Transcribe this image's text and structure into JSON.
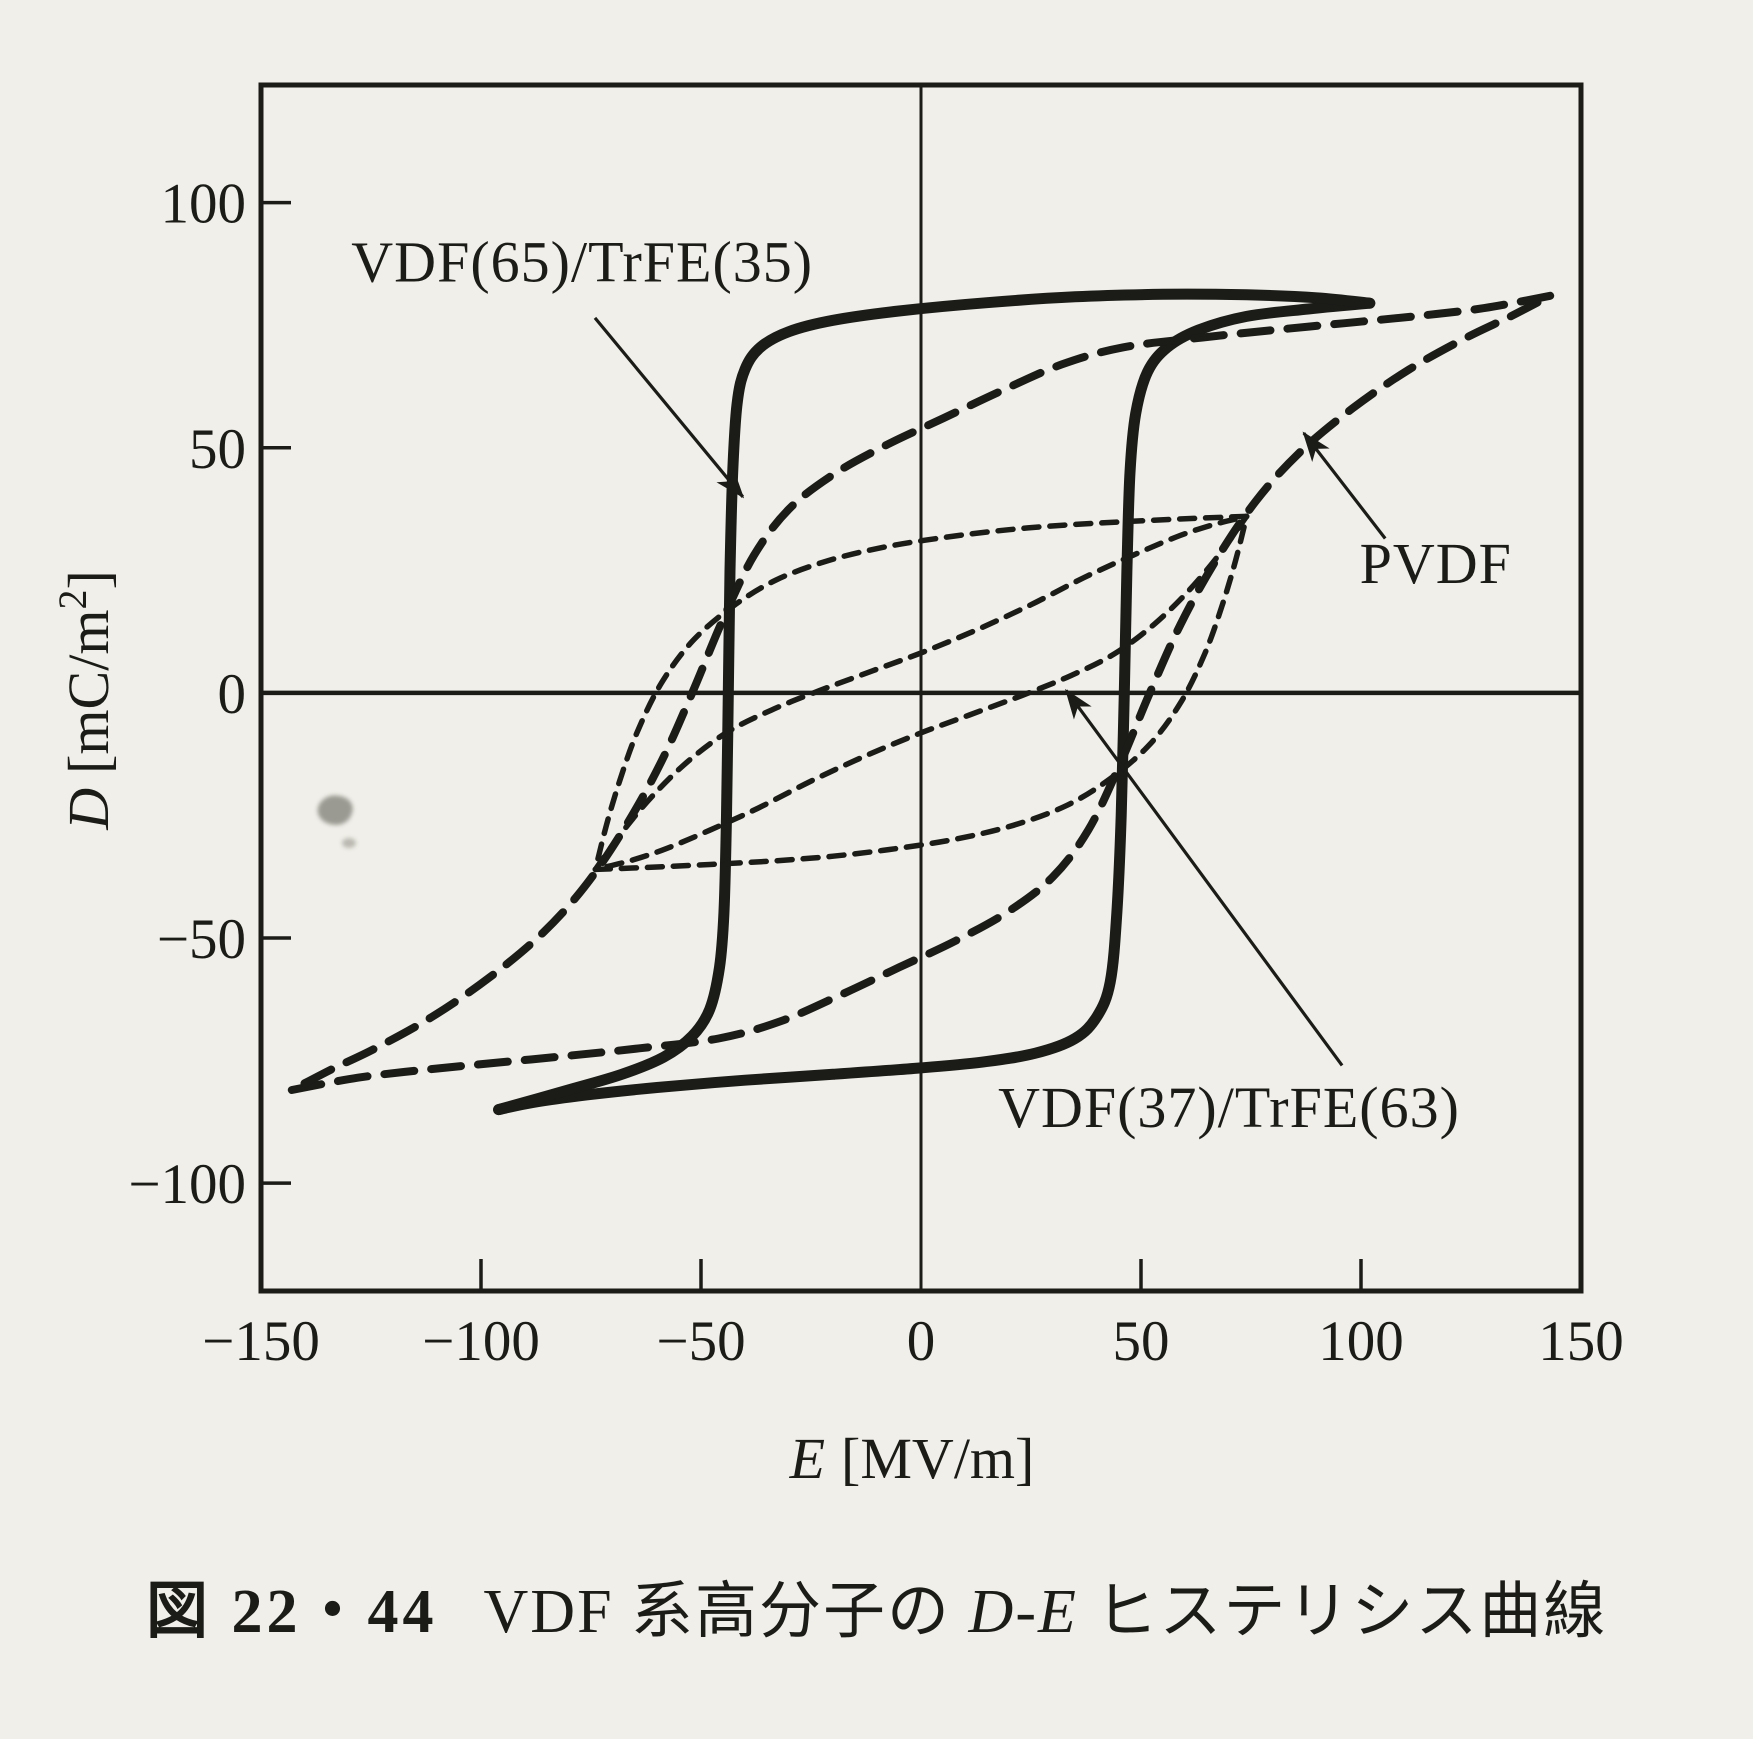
{
  "figure": {
    "caption": {
      "fig_no": "図 22・44",
      "segments": [
        {
          "t": "VDF 系高分子の ",
          "i": false
        },
        {
          "t": "D",
          "i": true
        },
        {
          "t": "-",
          "i": false
        },
        {
          "t": "E",
          "i": true
        },
        {
          "t": " ヒステリシス曲線",
          "i": false
        }
      ]
    },
    "colors": {
      "paper": "#f0efe9",
      "ink": "#1b1b18"
    }
  },
  "chart_data": {
    "type": "line",
    "title": "",
    "xlabel": {
      "symbol": "E",
      "unit": "[MV/m]"
    },
    "ylabel": {
      "symbol": "D",
      "unit_prefix": "[mC/m",
      "unit_sup": "2",
      "unit_suffix": "]"
    },
    "xlim": [
      -150,
      150
    ],
    "ylim": [
      -122,
      124
    ],
    "grid": "zero-axes-only",
    "legend_position": "annotated-arrows",
    "x_ticks": [
      {
        "v": -150,
        "label": "−150"
      },
      {
        "v": -100,
        "label": "−100"
      },
      {
        "v": -50,
        "label": "−50"
      },
      {
        "v": 0,
        "label": "0"
      },
      {
        "v": 50,
        "label": "50"
      },
      {
        "v": 100,
        "label": "100"
      },
      {
        "v": 150,
        "label": "150"
      }
    ],
    "y_ticks": [
      {
        "v": 100,
        "label": "100"
      },
      {
        "v": 50,
        "label": "50"
      },
      {
        "v": 0,
        "label": "0"
      },
      {
        "v": -50,
        "label": "−50"
      },
      {
        "v": -100,
        "label": "−100"
      }
    ],
    "series": [
      {
        "name": "VDF(65)/TrFE(35)",
        "style": "solid",
        "dash": "",
        "width": 11,
        "branches": [
          [
            [
              -96,
              -85
            ],
            [
              -88,
              -83.5
            ],
            [
              -76,
              -82
            ],
            [
              -60,
              -80.5
            ],
            [
              -40,
              -79
            ],
            [
              -20,
              -77.8
            ],
            [
              0,
              -76.5
            ],
            [
              14,
              -75.3
            ],
            [
              26,
              -73.5
            ],
            [
              35,
              -70.5
            ],
            [
              40,
              -66
            ],
            [
              43,
              -59
            ],
            [
              44.5,
              -45
            ],
            [
              45.5,
              -25
            ],
            [
              46.2,
              0
            ],
            [
              46.8,
              25
            ],
            [
              47.5,
              45
            ],
            [
              48.8,
              57
            ],
            [
              51.5,
              65.5
            ],
            [
              56,
              70.5
            ],
            [
              63,
              74
            ],
            [
              74,
              76.8
            ],
            [
              88,
              78.3
            ],
            [
              102,
              79.5
            ]
          ],
          [
            [
              102,
              79.5
            ],
            [
              90,
              80.6
            ],
            [
              74,
              81.2
            ],
            [
              55,
              81.3
            ],
            [
              35,
              80.8
            ],
            [
              15,
              79.6
            ],
            [
              -5,
              77.9
            ],
            [
              -20,
              76
            ],
            [
              -30,
              73.7
            ],
            [
              -36.5,
              70.5
            ],
            [
              -40,
              66
            ],
            [
              -41.8,
              59
            ],
            [
              -42.8,
              45
            ],
            [
              -43.4,
              25
            ],
            [
              -43.8,
              0
            ],
            [
              -44.2,
              -25
            ],
            [
              -44.8,
              -45
            ],
            [
              -45.8,
              -56
            ],
            [
              -48,
              -64.5
            ],
            [
              -52,
              -70
            ],
            [
              -58.5,
              -74.3
            ],
            [
              -68,
              -77.8
            ],
            [
              -81,
              -81.2
            ],
            [
              -96,
              -85
            ]
          ]
        ]
      },
      {
        "name": "PVDF",
        "style": "long-dash",
        "dash": "30 17",
        "width": 8,
        "branches": [
          [
            [
              -143,
              -81
            ],
            [
              -128,
              -78.5
            ],
            [
              -112,
              -76.8
            ],
            [
              -96,
              -75.4
            ],
            [
              -80,
              -74
            ],
            [
              -64,
              -72.5
            ],
            [
              -46,
              -70.5
            ],
            [
              -32,
              -67
            ],
            [
              -18,
              -61.5
            ],
            [
              -5,
              -56
            ],
            [
              8,
              -50.5
            ],
            [
              20,
              -44.5
            ],
            [
              30,
              -37.5
            ],
            [
              38,
              -28
            ],
            [
              45,
              -15
            ],
            [
              52,
              0
            ],
            [
              59,
              14
            ],
            [
              67,
              27
            ],
            [
              76,
              39
            ],
            [
              86,
              49
            ],
            [
              98,
              58
            ],
            [
              111,
              66
            ],
            [
              124,
              72.5
            ],
            [
              134,
              76.8
            ],
            [
              143,
              81
            ]
          ],
          [
            [
              143,
              81
            ],
            [
              128,
              78.5
            ],
            [
              112,
              76.8
            ],
            [
              96,
              75.4
            ],
            [
              80,
              74
            ],
            [
              64,
              72.5
            ],
            [
              46,
              70.5
            ],
            [
              32,
              67
            ],
            [
              18,
              61.5
            ],
            [
              5,
              56
            ],
            [
              -8,
              50.5
            ],
            [
              -20,
              44.5
            ],
            [
              -30,
              37.5
            ],
            [
              -38,
              28
            ],
            [
              -45,
              15
            ],
            [
              -52,
              0
            ],
            [
              -59,
              -14
            ],
            [
              -67,
              -27
            ],
            [
              -76,
              -39
            ],
            [
              -86,
              -49
            ],
            [
              -98,
              -58
            ],
            [
              -111,
              -66
            ],
            [
              -124,
              -72.5
            ],
            [
              -134,
              -76.8
            ],
            [
              -143,
              -81
            ]
          ]
        ]
      },
      {
        "name": "VDF(37)/TrFE(63)",
        "style": "short-dash",
        "dash": "15 11",
        "width": 5.5,
        "branches": [
          [
            [
              74,
              36
            ],
            [
              62,
              35.6
            ],
            [
              48,
              35
            ],
            [
              34,
              34.3
            ],
            [
              20,
              33.3
            ],
            [
              6,
              31.8
            ],
            [
              -8,
              29.8
            ],
            [
              -21,
              27
            ],
            [
              -33,
              23
            ],
            [
              -43,
              17.5
            ],
            [
              -52,
              10.5
            ],
            [
              -59,
              2
            ],
            [
              -64.5,
              -8
            ],
            [
              -68.5,
              -18
            ],
            [
              -71.5,
              -27
            ],
            [
              -74,
              -36
            ]
          ],
          [
            [
              -74,
              -36
            ],
            [
              -62,
              -35.6
            ],
            [
              -48,
              -35
            ],
            [
              -34,
              -34.3
            ],
            [
              -20,
              -33.3
            ],
            [
              -6,
              -31.8
            ],
            [
              8,
              -29.8
            ],
            [
              21,
              -27
            ],
            [
              33,
              -23
            ],
            [
              43,
              -17.5
            ],
            [
              52,
              -10.5
            ],
            [
              59,
              -2
            ],
            [
              64.5,
              8
            ],
            [
              68.5,
              18
            ],
            [
              71.5,
              27
            ],
            [
              74,
              36
            ]
          ]
        ]
      },
      {
        "name": "VDF(37)/TrFE(63) inner",
        "style": "short-dash",
        "dash": "15 11",
        "width": 5.5,
        "branches": [
          [
            [
              -74,
              -36
            ],
            [
              -68,
              -28.5
            ],
            [
              -61,
              -21
            ],
            [
              -53,
              -14
            ],
            [
              -44,
              -8
            ],
            [
              -34,
              -3.5
            ],
            [
              -23,
              0.5
            ],
            [
              -11,
              4.5
            ],
            [
              1,
              8.5
            ],
            [
              13,
              13
            ],
            [
              25,
              18
            ],
            [
              37,
              23.5
            ],
            [
              48,
              28
            ],
            [
              58,
              31.8
            ],
            [
              66,
              34.2
            ],
            [
              74,
              36
            ]
          ],
          [
            [
              74,
              36
            ],
            [
              68,
              28.5
            ],
            [
              61,
              21
            ],
            [
              53,
              14
            ],
            [
              44,
              8
            ],
            [
              34,
              3.5
            ],
            [
              23,
              -0.5
            ],
            [
              11,
              -4.5
            ],
            [
              -1,
              -8.5
            ],
            [
              -13,
              -13
            ],
            [
              -25,
              -18
            ],
            [
              -37,
              -23.5
            ],
            [
              -48,
              -28
            ],
            [
              -58,
              -31.8
            ],
            [
              -66,
              -34.2
            ],
            [
              -74,
              -36
            ]
          ]
        ]
      }
    ],
    "annotations": [
      {
        "id": "vdf65-label",
        "text": "VDF(65)/TrFE(35)",
        "at": [
          -77,
          88
        ],
        "arrow_from": [
          -74.1,
          76.5
        ],
        "arrow_to": [
          -40.5,
          40
        ]
      },
      {
        "id": "pvdf-label",
        "text": "PVDF",
        "at": [
          117,
          26.5
        ],
        "arrow_from": [
          105.5,
          31.5
        ],
        "arrow_to": [
          87,
          53
        ]
      },
      {
        "id": "vdf37-label",
        "text": "VDF(37)/TrFE(63)",
        "at": [
          70,
          -84.5
        ],
        "arrow_from": [
          95.7,
          -76
        ],
        "arrow_to": [
          33,
          0.5
        ]
      }
    ]
  }
}
